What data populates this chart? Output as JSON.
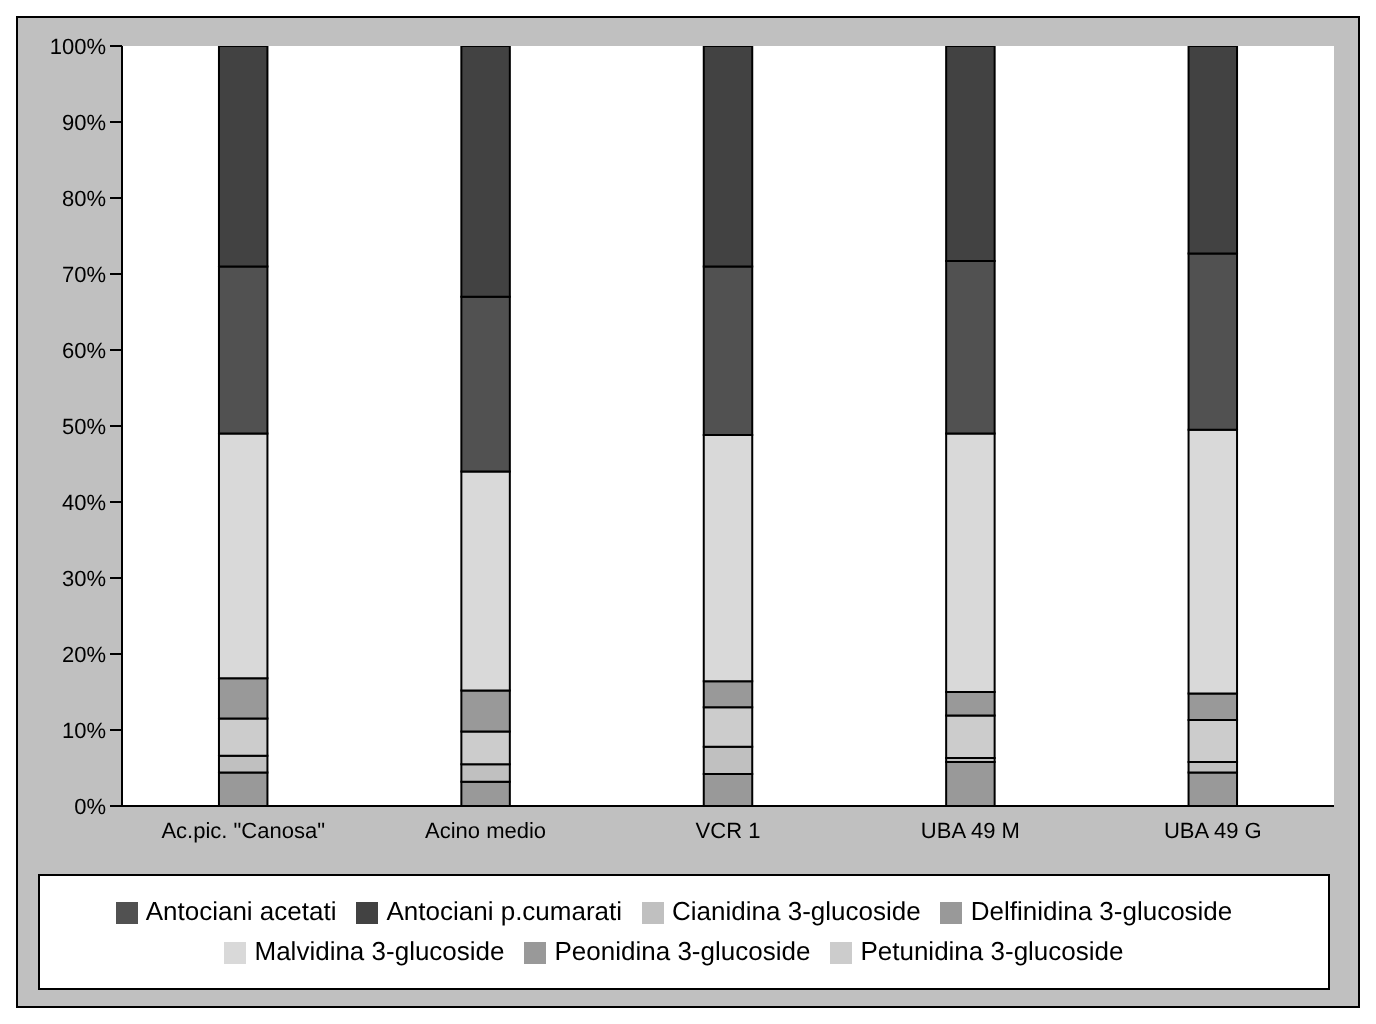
{
  "chart_data": {
    "type": "bar",
    "stacked": true,
    "categories": [
      "Ac.pic. \"Canosa\"",
      "Acino medio",
      "VCR 1",
      "UBA 49 M",
      "UBA 49 G"
    ],
    "series": [
      {
        "name": "Delfinidina 3-glucoside",
        "color": "#999999",
        "values": [
          4.4,
          3.2,
          4.2,
          5.8,
          4.4
        ]
      },
      {
        "name": "Cianidina 3-glucoside",
        "color": "#c0c0c0",
        "values": [
          2.2,
          2.3,
          3.6,
          0.5,
          1.4
        ]
      },
      {
        "name": "Petunidina 3-glucoside",
        "color": "#cccccc",
        "values": [
          4.9,
          4.3,
          5.2,
          5.6,
          5.5
        ]
      },
      {
        "name": "Peonidina 3-glucoside",
        "color": "#999999",
        "values": [
          5.3,
          5.4,
          3.4,
          3.1,
          3.5
        ]
      },
      {
        "name": "Malvidina 3-glucoside",
        "color": "#d9d9d9",
        "values": [
          32.2,
          28.8,
          32.4,
          34,
          34.7
        ]
      },
      {
        "name": "Antociani acetati",
        "color": "#515151",
        "values": [
          22,
          23,
          22.2,
          22.7,
          23.2
        ]
      },
      {
        "name": "Antociani p.cumarati",
        "color": "#424242",
        "values": [
          29,
          33,
          29,
          28.3,
          27.3
        ]
      }
    ],
    "ylim": [
      0,
      100
    ],
    "yticks": [
      {
        "value": 0,
        "label": "0%"
      },
      {
        "value": 10,
        "label": "10%"
      },
      {
        "value": 20,
        "label": "20%"
      },
      {
        "value": 30,
        "label": "30%"
      },
      {
        "value": 40,
        "label": "40%"
      },
      {
        "value": 50,
        "label": "50%"
      },
      {
        "value": 60,
        "label": "60%"
      },
      {
        "value": 70,
        "label": "70%"
      },
      {
        "value": 80,
        "label": "80%"
      },
      {
        "value": 90,
        "label": "90%"
      },
      {
        "value": 100,
        "label": "100%"
      }
    ],
    "legend": "bottom"
  }
}
